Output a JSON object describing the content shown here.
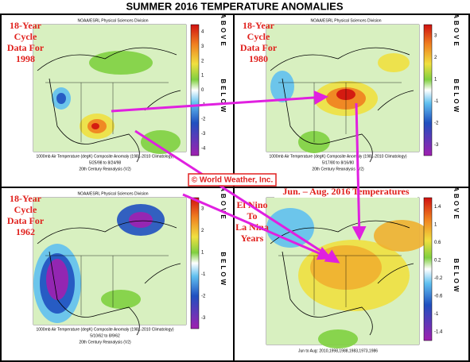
{
  "title": "SUMMER 2016 TEMPERATURE ANOMALIES",
  "credit": "© World Weather, Inc.",
  "panels": [
    {
      "label": [
        "18-Year",
        "Cycle",
        "Data For",
        "1998"
      ],
      "header": "NOAA/ESRL Physical Sciences Division",
      "caption": [
        "1000mb Air Temperature (degK) Composite Anomaly (1981-2010 Climatology)",
        "5/25/98 to 8/24/98",
        "20th Century Reanalysis (V2)"
      ],
      "scale": [
        "4",
        "3",
        "2",
        "1",
        "0",
        "-1",
        "-2",
        "-3",
        "-4"
      ],
      "above": "ABOVE",
      "below": "BELOW"
    },
    {
      "label": [
        "18-Year",
        "Cycle",
        "Data For",
        "1980"
      ],
      "header": "NOAA/ESRL Physical Sciences Division",
      "caption": [
        "1000mb Air Temperature (degK) Composite Anomaly (1981-2010 Climatology)",
        "5/17/80 to 8/16/80",
        "20th Century Reanalysis (V2)"
      ],
      "scale": [
        "3",
        "2",
        "1",
        "-1",
        "-2",
        "-3"
      ],
      "above": "ABOVE",
      "below": "BELOW"
    },
    {
      "label": [
        "18-Year",
        "Cycle",
        "Data For",
        "1962"
      ],
      "header": "NOAA/ESRL Physical Sciences Division",
      "caption": [
        "1000mb Air Temperature (degK) Composite Anomaly (1981-2010 Climatology)",
        "5/10/62 to 8/9/62",
        "20th Century Reanalysis (V2)"
      ],
      "scale": [
        "3",
        "2",
        "1",
        "-1",
        "-2",
        "-3"
      ],
      "above": "ABOVE",
      "below": "BELOW"
    },
    {
      "title": "Jun. – Aug. 2016 Temperatures",
      "label": [
        "El Nino",
        "To",
        "La Nina",
        "Years"
      ],
      "header": "NOAA/ESRL Physical Sciences Division",
      "caption": [
        "Jun to Aug: 2010,1998,1988,1983,1973,1986"
      ],
      "scale": [
        "1.4",
        "1",
        "0.6",
        "0.2",
        "-0.2",
        "-0.6",
        "-1",
        "-1.4"
      ],
      "above": "ABOVE",
      "below": "BELOW"
    }
  ]
}
